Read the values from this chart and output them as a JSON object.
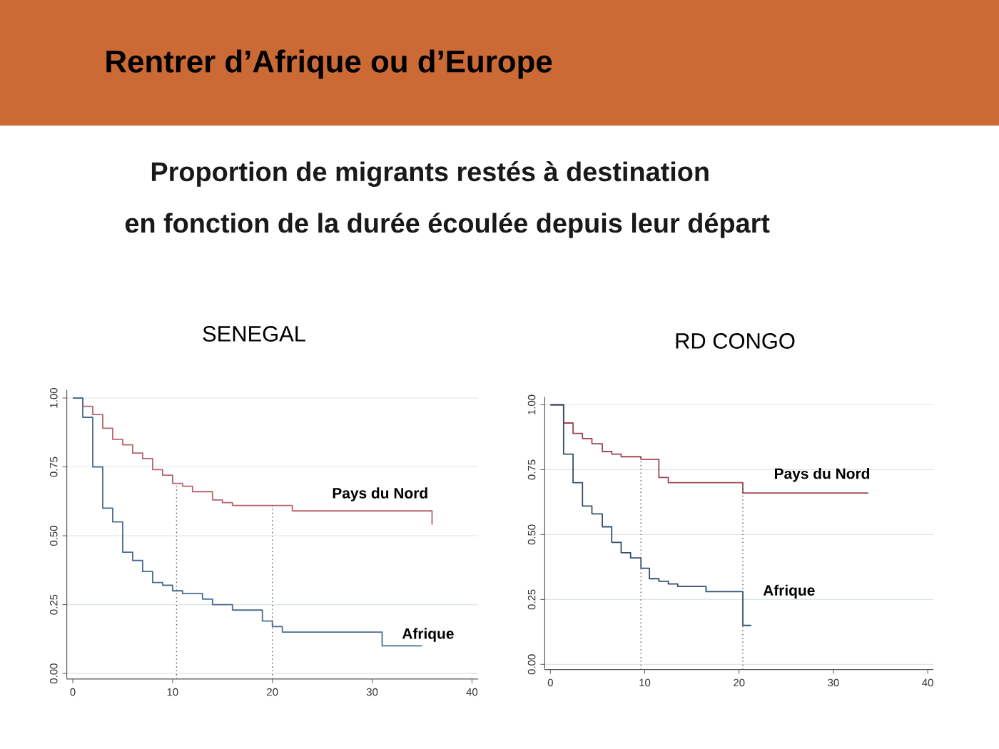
{
  "chart_data": [
    {
      "type": "step",
      "title": "SENEGAL",
      "annotations": [
        "Rentrer d’Afrique ou d’Europe",
        "Proportion de migrants restés à destination",
        "en fonction de la durée écoulée depuis leur départ"
      ],
      "xlim": [
        -0.6,
        40.6
      ],
      "ylim": [
        -0.02,
        1.03
      ],
      "xticks": [
        0,
        10,
        20,
        30,
        40
      ],
      "yticks": [
        {
          "value": 0,
          "label": "0.00"
        },
        {
          "value": 0.25,
          "label": "0.25"
        },
        {
          "value": 0.5,
          "label": "0.50"
        },
        {
          "value": 0.75,
          "label": "0.75"
        },
        {
          "value": 1,
          "label": "1.00"
        }
      ],
      "grid": "y",
      "ref_lines": [
        {
          "axis": "x",
          "value": 10.4,
          "color": "#555555",
          "line_style": "dotted"
        },
        {
          "axis": "x",
          "value": 20,
          "color": "#555555",
          "line_style": "dotted"
        }
      ],
      "series": [
        {
          "name": "Pays du Nord",
          "color": "#b8646b",
          "x": [
            0,
            1,
            2,
            3,
            4,
            5,
            6,
            7,
            8,
            9,
            10,
            11,
            12,
            14,
            15,
            16,
            22,
            36
          ],
          "values": [
            1,
            0.97,
            0.94,
            0.89,
            0.85,
            0.83,
            0.8,
            0.78,
            0.74,
            0.72,
            0.69,
            0.68,
            0.66,
            0.63,
            0.62,
            0.61,
            0.59,
            0.54
          ]
        },
        {
          "name": "Afrique",
          "color": "#4a6b8f",
          "x": [
            0,
            1,
            2,
            3,
            4,
            5,
            6,
            7,
            8,
            9,
            10,
            11,
            13,
            14,
            16,
            19,
            20,
            21,
            31,
            35
          ],
          "values": [
            1,
            0.93,
            0.75,
            0.6,
            0.55,
            0.44,
            0.41,
            0.37,
            0.33,
            0.32,
            0.3,
            0.29,
            0.27,
            0.25,
            0.23,
            0.19,
            0.17,
            0.15,
            0.1,
            0.1
          ]
        }
      ]
    },
    {
      "type": "step",
      "title": "RD CONGO",
      "xlim": [
        -0.6,
        40.6
      ],
      "ylim": [
        -0.02,
        1.03
      ],
      "xticks": [
        0,
        10,
        20,
        30,
        40
      ],
      "yticks": [
        {
          "value": 0,
          "label": "0.00"
        },
        {
          "value": 0.25,
          "label": "0.25"
        },
        {
          "value": 0.5,
          "label": "0.50"
        },
        {
          "value": 0.75,
          "label": "0.75"
        },
        {
          "value": 1,
          "label": "1.00"
        }
      ],
      "grid": "y",
      "ref_lines": [
        {
          "axis": "x",
          "value": 9.6,
          "color": "#555555",
          "line_style": "dotted"
        },
        {
          "axis": "x",
          "value": 20.4,
          "color": "#555555",
          "line_style": "dotted"
        }
      ],
      "series": [
        {
          "name": "Pays du Nord",
          "color": "#a04650",
          "x": [
            0,
            1.4,
            2.4,
            3.4,
            4.4,
            5.5,
            6.5,
            7.5,
            9.6,
            11.5,
            12.5,
            20.4,
            33.7
          ],
          "values": [
            1,
            0.93,
            0.89,
            0.87,
            0.85,
            0.82,
            0.81,
            0.8,
            0.79,
            0.72,
            0.7,
            0.66,
            0.66
          ]
        },
        {
          "name": "Afrique",
          "color": "#35506f",
          "x": [
            0,
            1.4,
            2.4,
            3.4,
            4.4,
            5.5,
            6.5,
            7.5,
            8.5,
            9.6,
            10.5,
            11.5,
            12.5,
            13.5,
            16.5,
            20.4,
            21.3
          ],
          "values": [
            1,
            0.81,
            0.7,
            0.61,
            0.58,
            0.53,
            0.47,
            0.43,
            0.41,
            0.37,
            0.33,
            0.32,
            0.31,
            0.3,
            0.28,
            0.15,
            0.15
          ]
        }
      ]
    }
  ]
}
